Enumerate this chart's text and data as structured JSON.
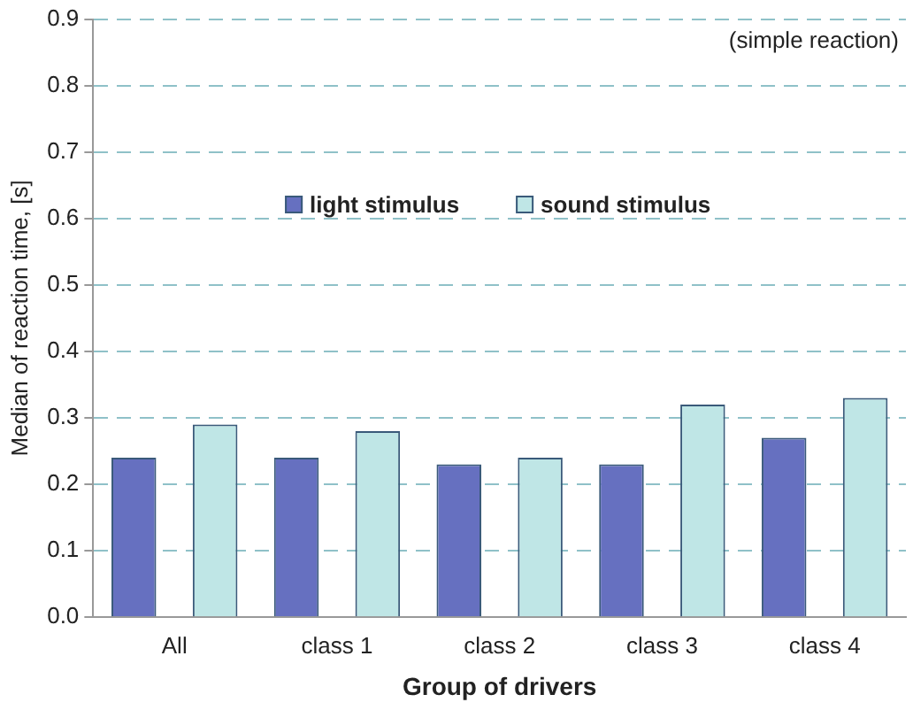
{
  "chart_data": {
    "type": "bar",
    "xlabel": "Group of drivers",
    "ylabel": "Median of reaction time, [s]",
    "annotations": [
      "(simple reaction)"
    ],
    "categories": [
      "All",
      "class 1",
      "class 2",
      "class 3",
      "class 4"
    ],
    "series": [
      {
        "name": "light stimulus",
        "color": "#6670c0",
        "values": [
          0.24,
          0.24,
          0.23,
          0.23,
          0.27
        ]
      },
      {
        "name": "sound stimulus",
        "color": "#bfe6e6",
        "values": [
          0.29,
          0.28,
          0.24,
          0.32,
          0.33
        ]
      }
    ],
    "ylim": [
      0,
      0.9
    ],
    "yticks": [
      {
        "value": 0,
        "label": "0.0"
      },
      0.1,
      0.2,
      0.3,
      0.4,
      0.5,
      0.6,
      0.7,
      0.8,
      0.9
    ],
    "grid": "y",
    "legend": "top"
  }
}
